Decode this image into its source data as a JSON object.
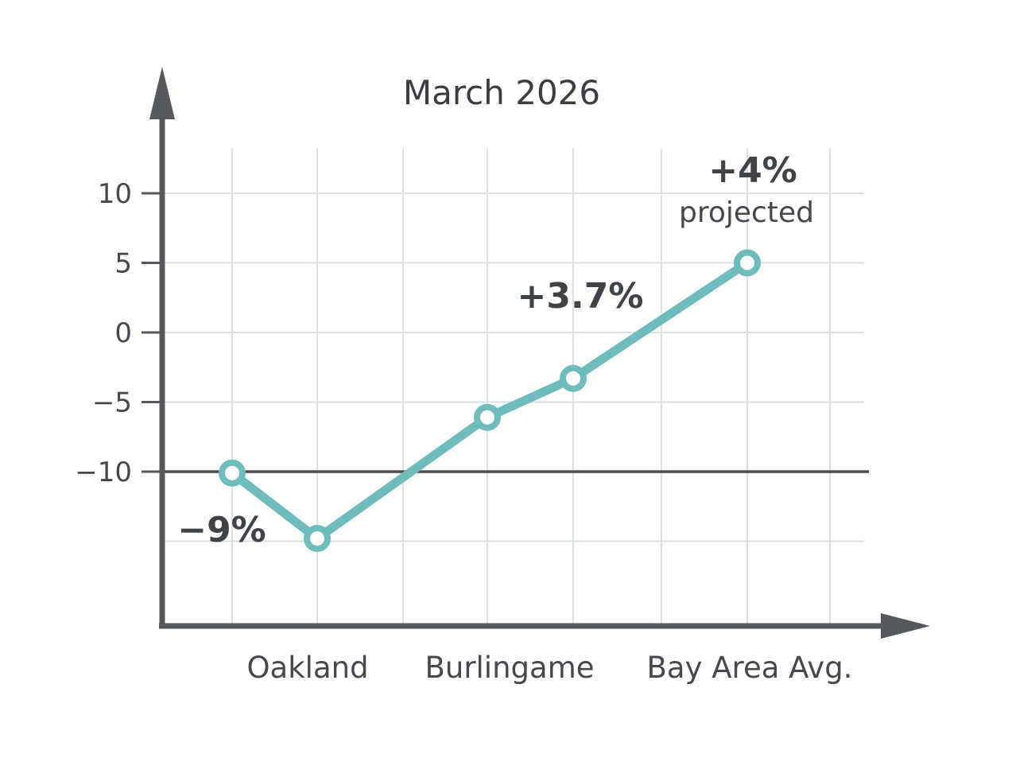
{
  "chart_data": {
    "type": "line",
    "title": "March 2026",
    "xlabel": "",
    "ylabel": "",
    "ylim": [
      -20,
      14
    ],
    "yticks": [
      10,
      5,
      0,
      -5,
      -10
    ],
    "ytick_labels": [
      "10",
      "5",
      "0",
      "−5",
      "−10"
    ],
    "x_category_labels": [
      "Oakland",
      "Burlingame",
      "Bay Area Avg."
    ],
    "reference_line": -10,
    "series": [
      {
        "values": [
          -10.1,
          -14.8,
          -6.1,
          -3.3,
          5.0
        ]
      }
    ],
    "annotations": [
      {
        "text": "−9%",
        "point": 0
      },
      {
        "text": "+3.7%",
        "point": 3
      },
      {
        "text": "+4%",
        "subtext": "projected",
        "point": 4
      }
    ],
    "grid": true,
    "colors": {
      "series": "#6fbcbc",
      "axis": "#55585d",
      "grid": "#d9e1e4"
    }
  }
}
